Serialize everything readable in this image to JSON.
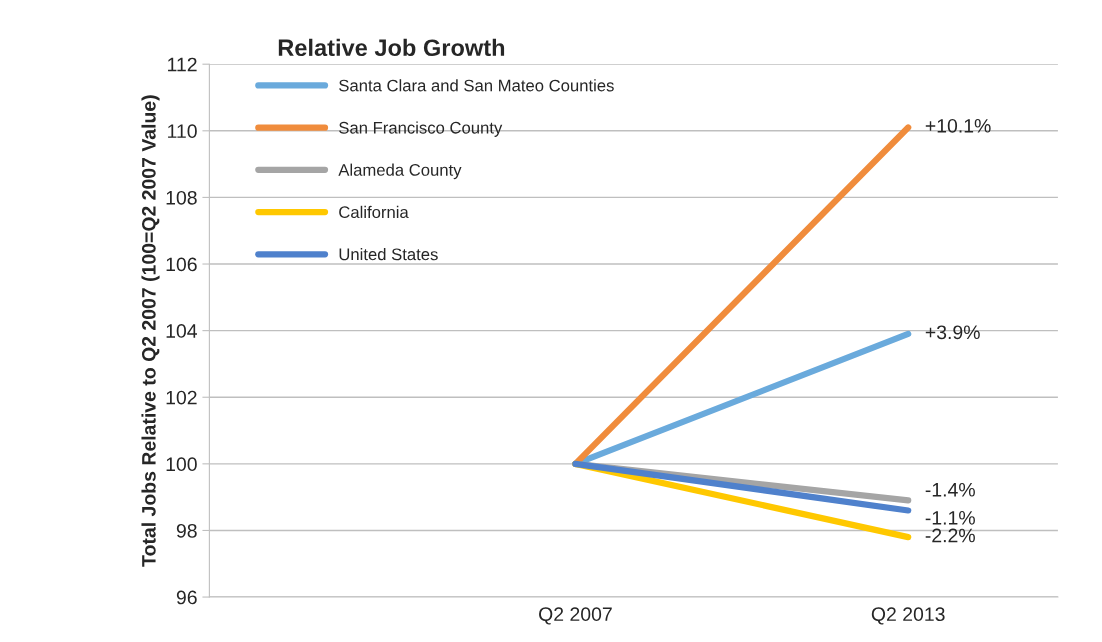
{
  "chart_data": {
    "type": "line",
    "title": "Relative Job Growth",
    "ylabel": "Total Jobs Relative to Q2 2007 (100=Q2 2007 Value)",
    "categories": [
      "Q2 2007",
      "Q2 2013"
    ],
    "series": [
      {
        "name": "Santa Clara and San Mateo Counties",
        "color": "#6aaadc",
        "values": [
          100,
          103.9
        ]
      },
      {
        "name": "San Francisco County",
        "color": "#f08c3c",
        "values": [
          100,
          110.1
        ]
      },
      {
        "name": "Alameda County",
        "color": "#a5a5a5",
        "values": [
          100,
          98.9
        ]
      },
      {
        "name": "California",
        "color": "#ffc800",
        "values": [
          100,
          97.8
        ]
      },
      {
        "name": "United States",
        "color": "#4f81cc",
        "values": [
          100,
          98.6
        ]
      }
    ],
    "ylim": [
      96,
      112
    ],
    "yticks": [
      96,
      98,
      100,
      102,
      104,
      106,
      108,
      110,
      112
    ],
    "grid": "y",
    "legend": "top left",
    "marker": "none",
    "line_style": "solid",
    "annotations": [
      {
        "text": "+10.1%",
        "x": "Q2 2013",
        "y": 110.1
      },
      {
        "text": "+3.9%",
        "x": "Q2 2013",
        "y": 103.9
      },
      {
        "text": "-1.4%",
        "x": "Q2 2013",
        "y": 98.9
      },
      {
        "text": "-1.1%",
        "x": "Q2 2013",
        "y": 98.6
      },
      {
        "text": "-2.2%",
        "x": "Q2 2013",
        "y": 97.8
      }
    ]
  }
}
